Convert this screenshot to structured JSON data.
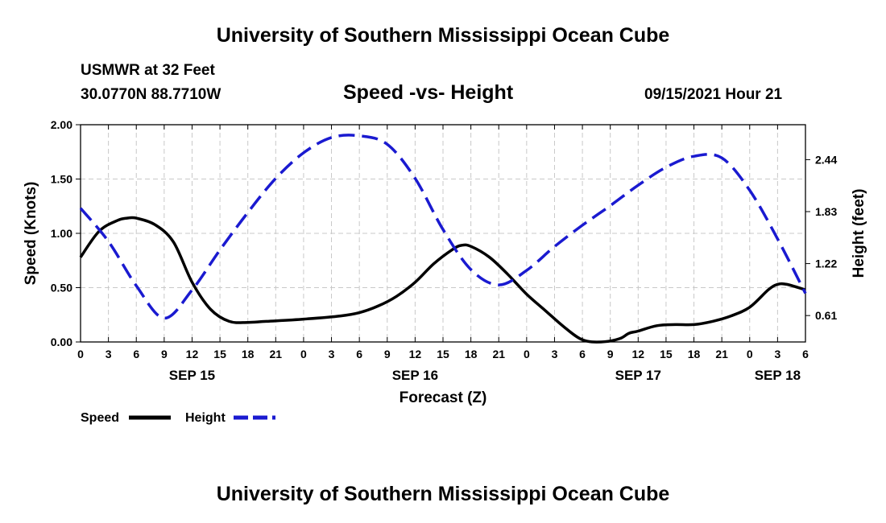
{
  "header": {
    "title": "University of Southern Mississippi Ocean Cube",
    "station": "USMWR at 32 Feet",
    "coordinates": "30.0770N  88.7710W",
    "subtitle": "Speed -vs- Height",
    "datetime": "09/15/2021 Hour 21"
  },
  "footer": {
    "title": "University of Southern Mississippi Ocean Cube"
  },
  "chart_data": {
    "type": "line",
    "title": "Speed -vs- Height",
    "xlabel": "Forecast (Z)",
    "ylabel_left": "Speed (Knots)",
    "ylabel_right": "Height (feet)",
    "x_unit": "hours since 2021-09-15 00Z",
    "xlim": [
      0,
      78
    ],
    "ylim_left": [
      0,
      2.0
    ],
    "ylim_right": [
      0.3,
      2.85
    ],
    "grid": true,
    "x_tick_values": [
      0,
      3,
      6,
      9,
      12,
      15,
      18,
      21,
      24,
      27,
      30,
      33,
      36,
      39,
      42,
      45,
      48,
      51,
      54,
      57,
      60,
      63,
      66,
      69,
      72,
      75,
      78
    ],
    "x_tick_labels": [
      "0",
      "3",
      "6",
      "9",
      "12",
      "15",
      "18",
      "21",
      "0",
      "3",
      "6",
      "9",
      "12",
      "15",
      "18",
      "21",
      "0",
      "3",
      "6",
      "9",
      "12",
      "15",
      "18",
      "21",
      "0",
      "3",
      "6"
    ],
    "date_labels": [
      {
        "label": "SEP 15",
        "x": 12
      },
      {
        "label": "SEP 16",
        "x": 36
      },
      {
        "label": "SEP 17",
        "x": 60
      },
      {
        "label": "SEP 18",
        "x": 75
      }
    ],
    "y_left_ticks": [
      {
        "value": 0,
        "label": "0.00"
      },
      {
        "value": 0.5,
        "label": "0.50"
      },
      {
        "value": 1.0,
        "label": "1.00"
      },
      {
        "value": 1.5,
        "label": "1.50"
      },
      {
        "value": 2.0,
        "label": "2.00"
      }
    ],
    "y_right_ticks": [
      {
        "value": 0.61,
        "label": "0.61"
      },
      {
        "value": 1.22,
        "label": "1.22"
      },
      {
        "value": 1.83,
        "label": "1.83"
      },
      {
        "value": 2.44,
        "label": "2.44"
      }
    ],
    "series": [
      {
        "name": "Speed",
        "axis": "left",
        "color": "#000000",
        "dash": "solid",
        "x": [
          0,
          2,
          4,
          5,
          6,
          8,
          10,
          12,
          14,
          16,
          18,
          20,
          24,
          28,
          30,
          32,
          34,
          36,
          38,
          40,
          41,
          42,
          44,
          46,
          48,
          50,
          52,
          54,
          56,
          58,
          59,
          60,
          62,
          64,
          66,
          68,
          70,
          72,
          74,
          75,
          76,
          78
        ],
        "values": [
          0.78,
          1.02,
          1.12,
          1.14,
          1.14,
          1.08,
          0.92,
          0.55,
          0.3,
          0.19,
          0.18,
          0.19,
          0.21,
          0.24,
          0.27,
          0.33,
          0.42,
          0.55,
          0.72,
          0.85,
          0.89,
          0.88,
          0.78,
          0.62,
          0.44,
          0.29,
          0.14,
          0.02,
          0.0,
          0.03,
          0.08,
          0.1,
          0.15,
          0.16,
          0.16,
          0.19,
          0.24,
          0.32,
          0.48,
          0.53,
          0.53,
          0.48
        ]
      },
      {
        "name": "Height",
        "axis": "right",
        "color": "#1a1ad0",
        "dash": "dashed",
        "x": [
          0,
          3,
          6,
          9,
          12,
          15,
          18,
          21,
          24,
          27,
          30,
          33,
          36,
          39,
          42,
          45,
          48,
          51,
          54,
          57,
          60,
          63,
          66,
          69,
          72,
          75,
          78
        ],
        "values": [
          1.87,
          1.48,
          0.96,
          0.58,
          0.91,
          1.38,
          1.82,
          2.22,
          2.52,
          2.7,
          2.72,
          2.62,
          2.22,
          1.62,
          1.15,
          0.97,
          1.14,
          1.42,
          1.67,
          1.9,
          2.14,
          2.35,
          2.48,
          2.46,
          2.08,
          1.51,
          0.87
        ]
      }
    ],
    "legend": [
      {
        "label": "Speed",
        "color": "#000000",
        "dash": "solid"
      },
      {
        "label": "Height",
        "color": "#1a1ad0",
        "dash": "dashed"
      }
    ]
  }
}
